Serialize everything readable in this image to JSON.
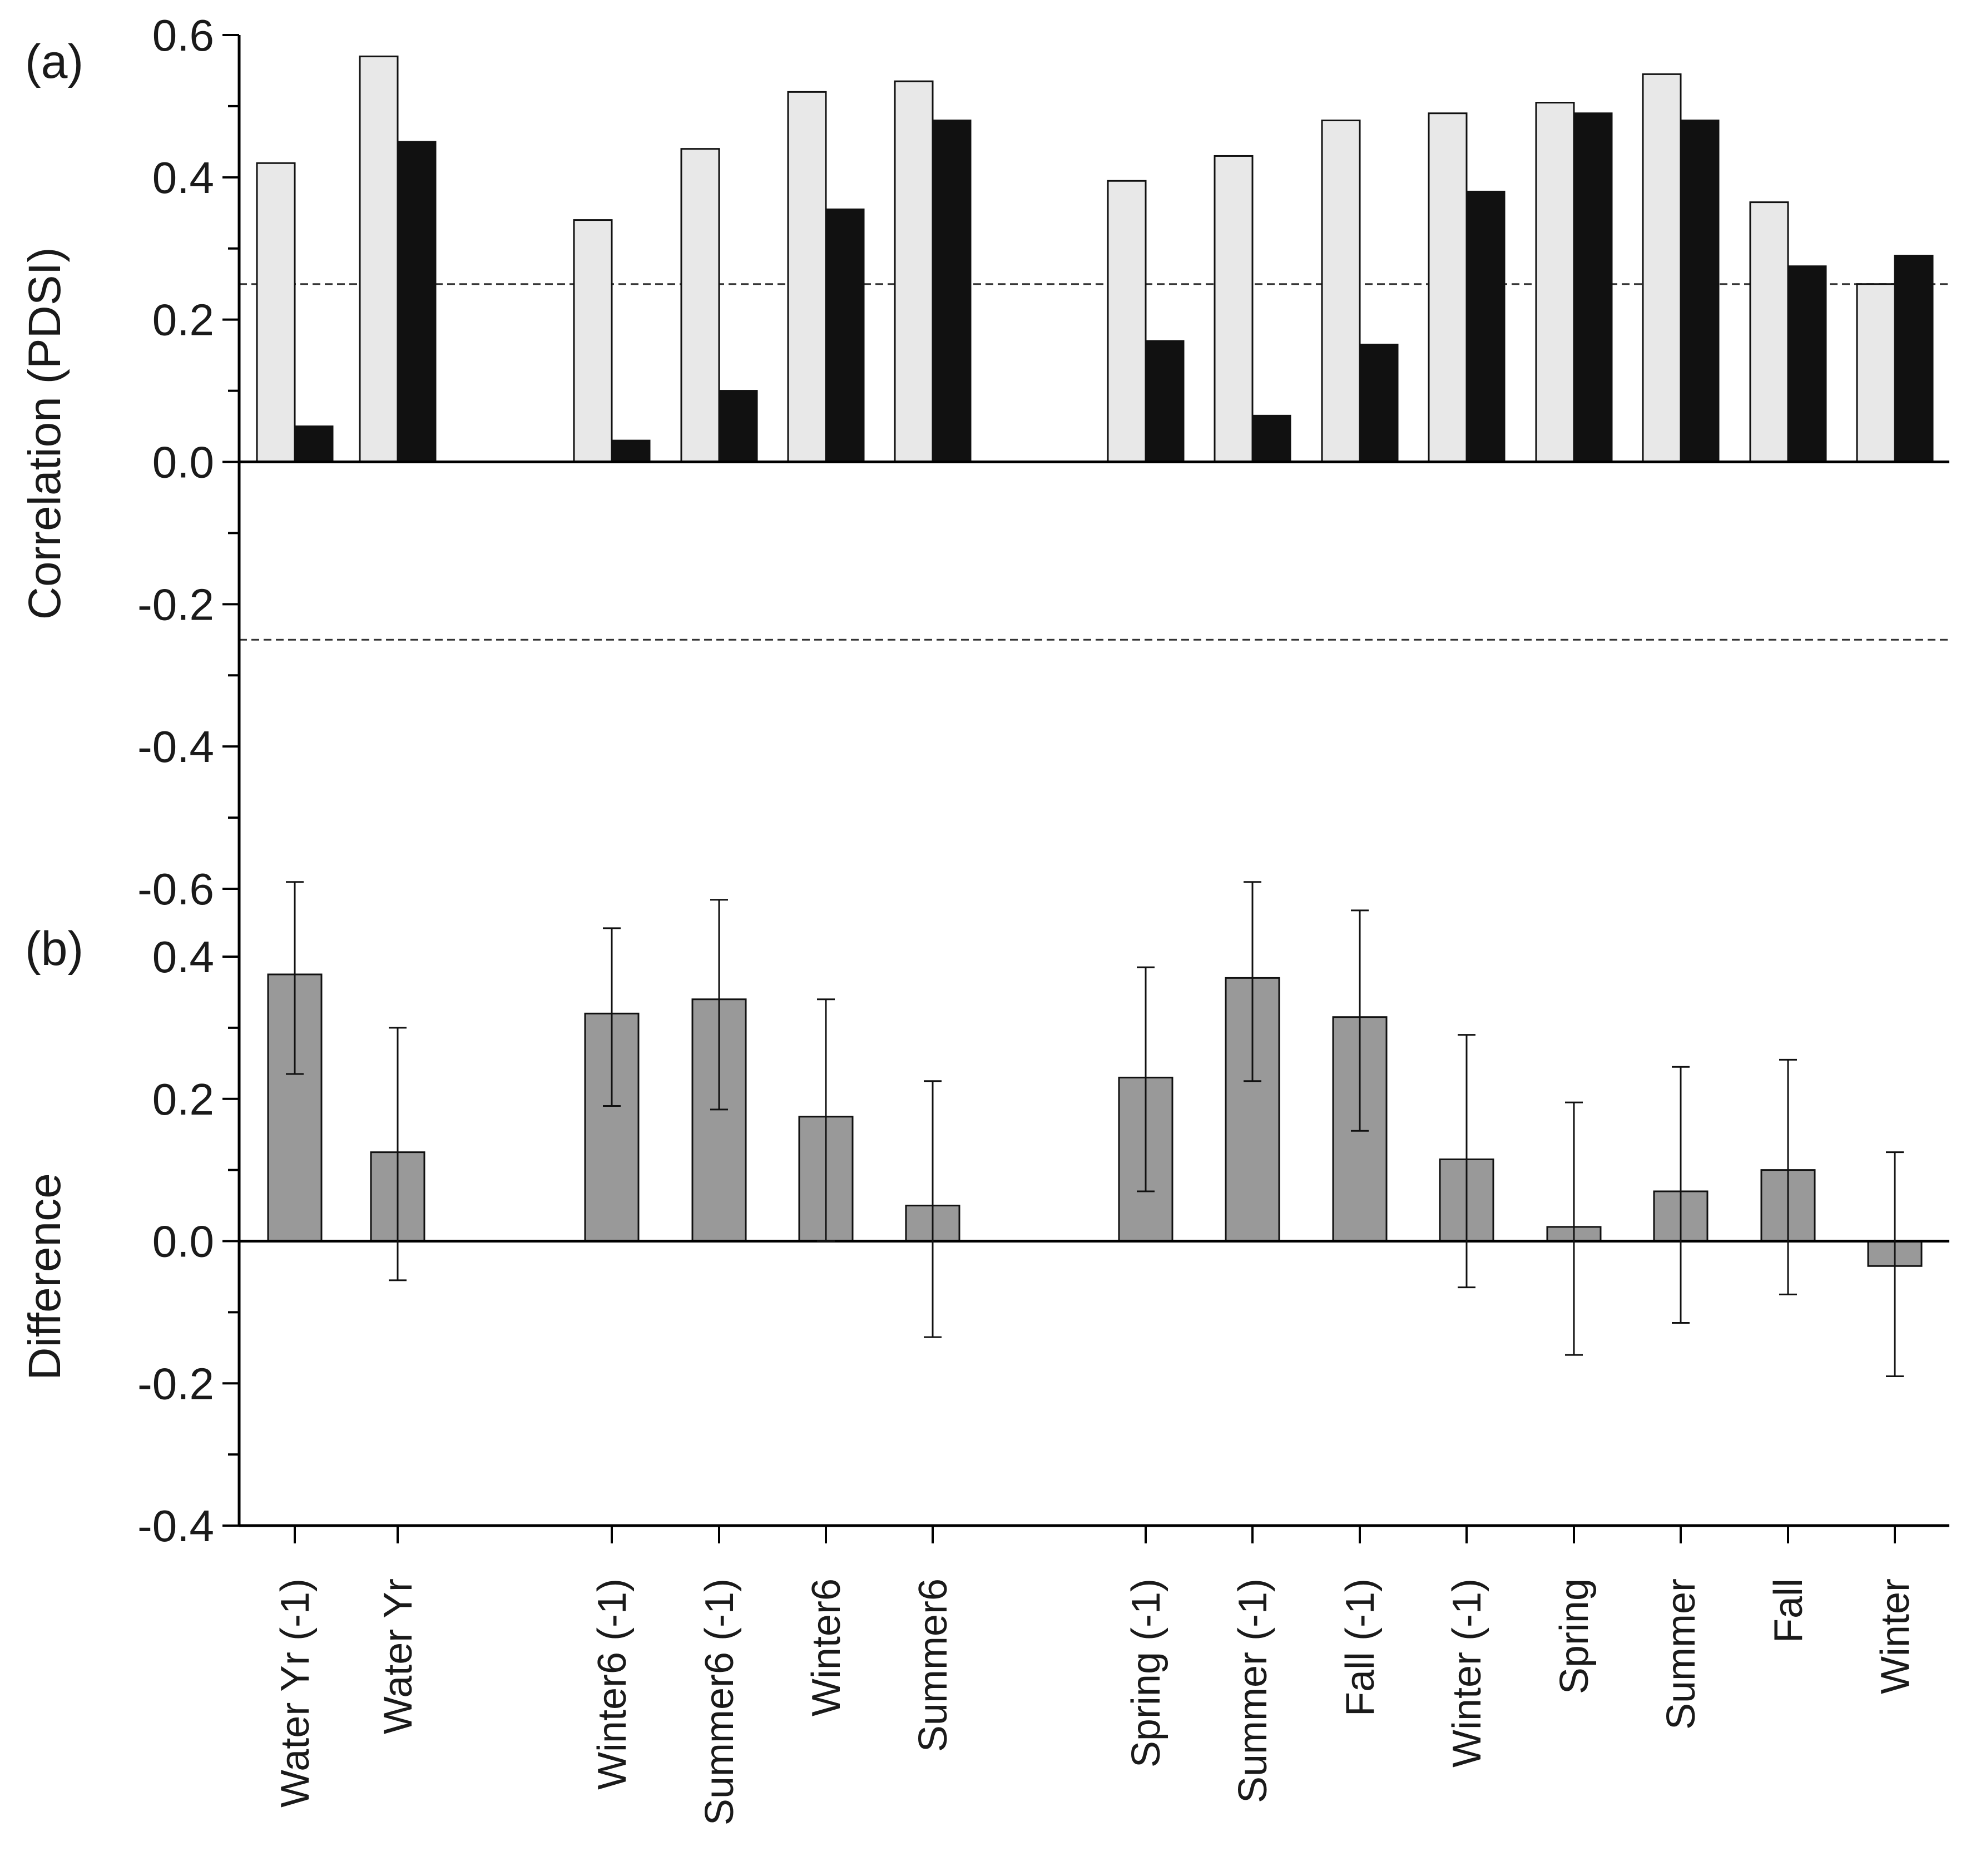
{
  "categories": [
    "Water Yr (-1)",
    "Water Yr",
    "Winter6 (-1)",
    "Summer6 (-1)",
    "Winter6",
    "Summer6",
    "Spring (-1)",
    "Summer (-1)",
    "Fall (-1)",
    "Winter (-1)",
    "Spring",
    "Summer",
    "Fall",
    "Winter"
  ],
  "colors": {
    "light_bar": "#e8e8e8",
    "dark_bar": "#111111",
    "diff_bar": "#999999",
    "axis": "#000000"
  },
  "chart_data": [
    {
      "type": "bar",
      "panel_label": "(a)",
      "ylabel": "Correlation (PDSI)",
      "ylim": [
        -0.6,
        0.6
      ],
      "yticks": [
        "0.6",
        "0.4",
        "0.2",
        "0.0",
        "-0.2",
        "-0.4",
        "-0.6"
      ],
      "significance_lines": [
        0.25,
        -0.25
      ],
      "series": [
        {
          "name": "light",
          "values": [
            0.42,
            0.57,
            0.34,
            0.44,
            0.52,
            0.535,
            0.395,
            0.43,
            0.48,
            0.49,
            0.505,
            0.545,
            0.365,
            0.25
          ]
        },
        {
          "name": "dark",
          "values": [
            0.05,
            0.45,
            0.03,
            0.1,
            0.355,
            0.48,
            0.17,
            0.065,
            0.165,
            0.38,
            0.49,
            0.48,
            0.275,
            0.29
          ]
        }
      ]
    },
    {
      "type": "bar",
      "panel_label": "(b)",
      "ylabel": "Difference",
      "ylim": [
        -0.4,
        0.4
      ],
      "yticks": [
        "0.4",
        "0.2",
        "0.0",
        "-0.2",
        "-0.4"
      ],
      "series": [
        {
          "name": "difference",
          "values": [
            0.375,
            0.125,
            0.32,
            0.34,
            0.175,
            0.05,
            0.23,
            0.37,
            0.315,
            0.115,
            0.02,
            0.07,
            0.1,
            -0.035
          ]
        }
      ],
      "error_low": [
        0.235,
        -0.055,
        0.19,
        0.185,
        0.0,
        -0.135,
        0.07,
        0.225,
        0.155,
        -0.065,
        -0.16,
        -0.115,
        -0.075,
        -0.19
      ],
      "error_high": [
        0.505,
        0.3,
        0.44,
        0.48,
        0.34,
        0.225,
        0.385,
        0.505,
        0.465,
        0.29,
        0.195,
        0.245,
        0.255,
        0.125
      ]
    }
  ]
}
